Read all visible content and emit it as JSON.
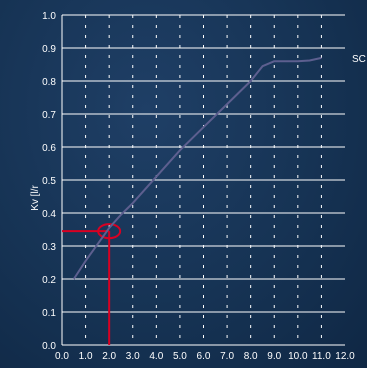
{
  "chart_data": {
    "type": "line",
    "title": "",
    "xlabel": "",
    "ylabel": "Kv [l/r",
    "side_label": "SC",
    "xlim": [
      0,
      12
    ],
    "ylim": [
      0,
      1
    ],
    "x_ticks": [
      "0.0",
      "1.0",
      "2.0",
      "3.0",
      "4.0",
      "5.0",
      "6.0",
      "7.0",
      "8.0",
      "9.0",
      "10.0",
      "11.0",
      "12.0"
    ],
    "y_ticks": [
      "0.0",
      "0.1",
      "0.2",
      "0.3",
      "0.4",
      "0.5",
      "0.6",
      "0.7",
      "0.8",
      "0.9",
      "1.0"
    ],
    "grid": true,
    "series": [
      {
        "x": [
          0.5,
          1.0,
          1.5,
          2.0,
          2.5,
          3.0,
          4.0,
          5.0,
          6.0,
          7.0,
          8.0,
          8.5,
          9.0,
          10.0,
          10.5,
          11.0
        ],
        "y": [
          0.2,
          0.255,
          0.305,
          0.355,
          0.395,
          0.43,
          0.51,
          0.59,
          0.66,
          0.73,
          0.8,
          0.845,
          0.86,
          0.86,
          0.862,
          0.87
        ]
      }
    ],
    "highlight": {
      "x": 2.0,
      "y": 0.345
    },
    "colors": {
      "line": "#5d5f8f",
      "highlight": "#d90022",
      "grid": "#ffffff",
      "text": "#ffffff"
    }
  }
}
